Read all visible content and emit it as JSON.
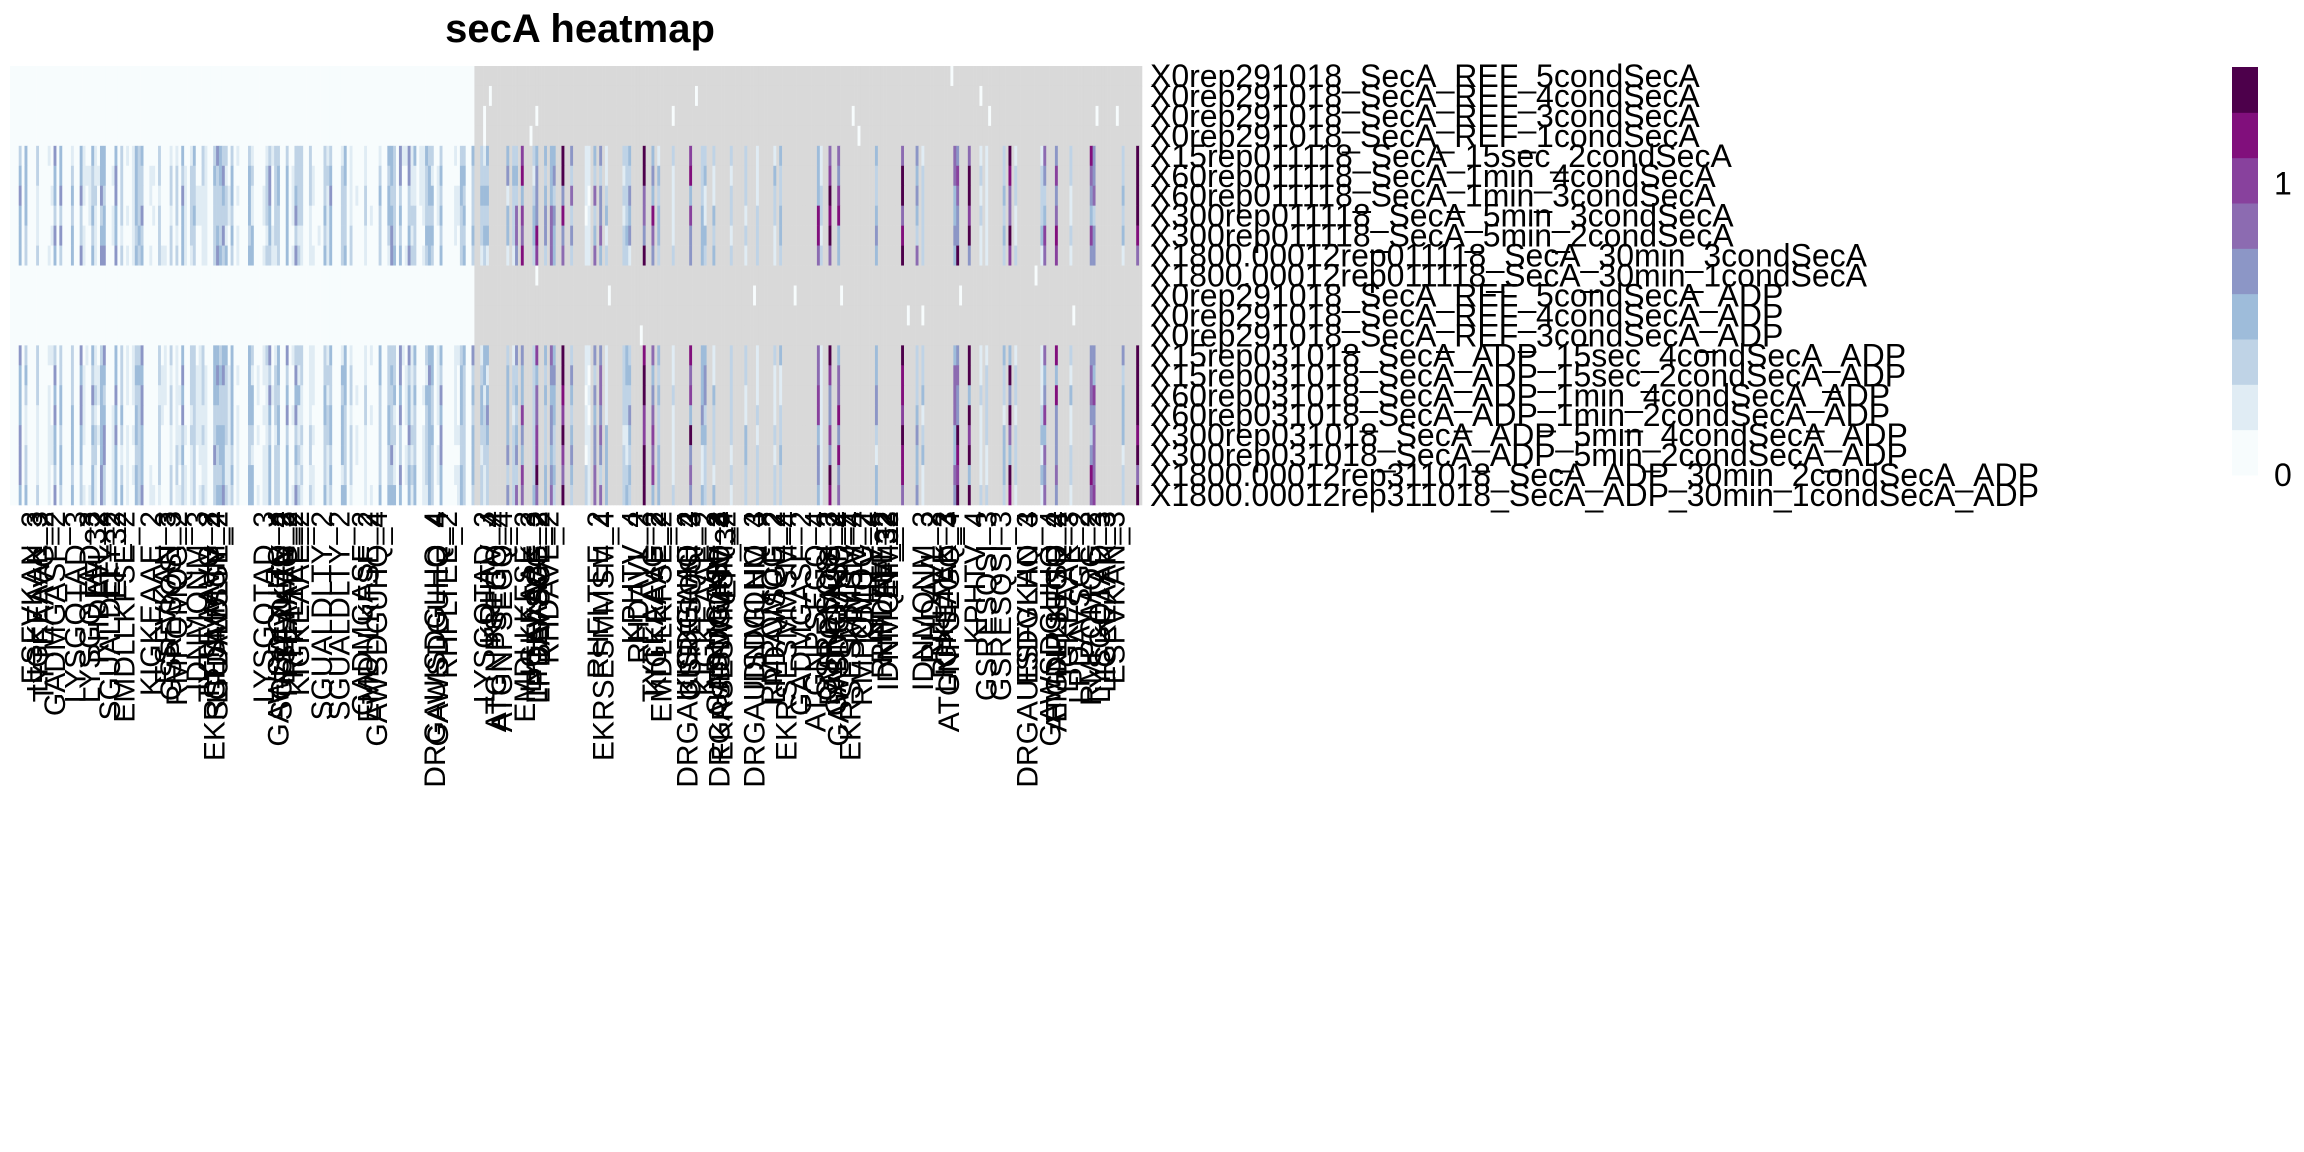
{
  "chart_data": {
    "type": "heatmap",
    "title": "secA heatmap",
    "rows": [
      "X0rep291018_SecA_REF_5condSecA",
      "X0rep291018_SecA_REF_4condSecA",
      "X0rep291018_SecA_REF_3condSecA",
      "X0rep291018_SecA_REF_1condSecA",
      "X15rep011118_SecA_15sec_2condSecA",
      "X60rep011118_SecA_1min_4condSecA",
      "X60rep011118_SecA_1min_3condSecA",
      "X300rep011118_SecA_5min_3condSecA",
      "X300rep011118_SecA_5min_2condSecA",
      "X1800.00012rep011118_SecA_30min_3condSecA",
      "X1800.00012rep011118_SecA_30min_1condSecA",
      "X0rep291018_SecA_REF_5condSecA_ADP",
      "X0rep291018_SecA_REF_4condSecA_ADP",
      "X0rep291018_SecA_REF_3condSecA_ADP",
      "X15rep031018_SecA_ADP_15sec_4condSecA_ADP",
      "X15rep031018_SecA_ADP_15sec_2condSecA_ADP",
      "X60rep031018_SecA_ADP_1min_4condSecA_ADP",
      "X60rep031018_SecA_ADP_1min_2condSecA_ADP",
      "X300rep031018_SecA_ADP_5min_4condSecA_ADP",
      "X300rep031018_SecA_ADP_5min_2condSecA_ADP",
      "X1800.00012rep311018_SecA_ADP_30min_2condSecA_ADP",
      "X1800.00012rep311018_SecA_ADP_30min_1condSecA_ADP"
    ],
    "column_labels_readable": [
      "LIGKEAAK_3",
      "EF_32",
      "KIGKEAAE_2",
      "TYTEAAVG_2",
      "LYSGQTAD_3",
      "SGUALDLTY_2",
      "GAWSDGUHQ_4",
      "DRGAUISDGLHQ_4",
      "KPHTV_4",
      "RHDAVL_2",
      "EKRSESMMSM_4",
      "EMDLLKFSE_2",
      "GADMGASF_2",
      "LPDAVSGE_2",
      "RMPQMQG_2",
      "IDNMQNM_3",
      "RHFLTEE_2",
      "GSRESQSI_3",
      "ATGNPSEGQ_4",
      "ESFVKAN_3"
    ],
    "columns_total": 390,
    "columns_measured_ref_only": 160,
    "color_scale": {
      "min": 0,
      "max": 1.4,
      "ticks": [
        0,
        1
      ],
      "colors": [
        "#f7fcfd",
        "#e0ecf4",
        "#bfd3e6",
        "#9ebcda",
        "#8c96c6",
        "#8c6bb1",
        "#88419d",
        "#810f7c",
        "#4d004b"
      ],
      "na_color": "#d9d9d9"
    },
    "legend_position": "right"
  }
}
